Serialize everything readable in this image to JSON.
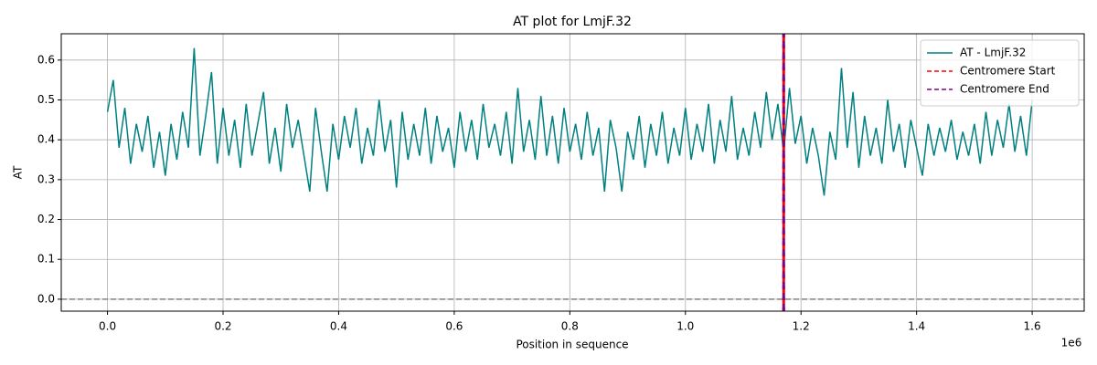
{
  "chart_data": {
    "type": "line",
    "title": "AT plot for LmjF.32",
    "x_label": "Position in sequence",
    "y_label": "AT",
    "x_offset_label": "1e6",
    "xlim": [
      -80000,
      1690000
    ],
    "ylim": [
      -0.03,
      0.666
    ],
    "xticks": [
      {
        "value": 0,
        "label": "0.0"
      },
      {
        "value": 200000,
        "label": "0.2"
      },
      {
        "value": 400000,
        "label": "0.4"
      },
      {
        "value": 600000,
        "label": "0.6"
      },
      {
        "value": 800000,
        "label": "0.8"
      },
      {
        "value": 1000000,
        "label": "1.0"
      },
      {
        "value": 1200000,
        "label": "1.2"
      },
      {
        "value": 1400000,
        "label": "1.4"
      },
      {
        "value": 1600000,
        "label": "1.6"
      }
    ],
    "yticks": [
      {
        "value": 0,
        "label": "0.0"
      },
      0.1,
      0.2,
      0.3,
      0.4,
      0.5,
      0.6
    ],
    "grid": true,
    "legend": "upper right",
    "x": [
      0,
      10000,
      20000,
      30000,
      40000,
      50000,
      60000,
      70000,
      80000,
      90000,
      100000,
      110000,
      120000,
      130000,
      140000,
      150000,
      160000,
      170000,
      180000,
      190000,
      200000,
      210000,
      220000,
      230000,
      240000,
      250000,
      260000,
      270000,
      280000,
      290000,
      300000,
      310000,
      320000,
      330000,
      340000,
      350000,
      360000,
      370000,
      380000,
      390000,
      400000,
      410000,
      420000,
      430000,
      440000,
      450000,
      460000,
      470000,
      480000,
      490000,
      500000,
      510000,
      520000,
      530000,
      540000,
      550000,
      560000,
      570000,
      580000,
      590000,
      600000,
      610000,
      620000,
      630000,
      640000,
      650000,
      660000,
      670000,
      680000,
      690000,
      700000,
      710000,
      720000,
      730000,
      740000,
      750000,
      760000,
      770000,
      780000,
      790000,
      800000,
      810000,
      820000,
      830000,
      840000,
      850000,
      860000,
      870000,
      880000,
      890000,
      900000,
      910000,
      920000,
      930000,
      940000,
      950000,
      960000,
      970000,
      980000,
      990000,
      1000000,
      1010000,
      1020000,
      1030000,
      1040000,
      1050000,
      1060000,
      1070000,
      1080000,
      1090000,
      1100000,
      1110000,
      1120000,
      1130000,
      1140000,
      1150000,
      1160000,
      1170000,
      1180000,
      1190000,
      1200000,
      1210000,
      1220000,
      1230000,
      1240000,
      1250000,
      1260000,
      1270000,
      1280000,
      1290000,
      1300000,
      1310000,
      1320000,
      1330000,
      1340000,
      1350000,
      1360000,
      1370000,
      1380000,
      1390000,
      1400000,
      1410000,
      1420000,
      1430000,
      1440000,
      1450000,
      1460000,
      1470000,
      1480000,
      1490000,
      1500000,
      1510000,
      1520000,
      1530000,
      1540000,
      1550000,
      1560000,
      1570000,
      1580000,
      1590000,
      1600000
    ],
    "series": [
      {
        "name": "AT - LmjF.32",
        "color": "#008080",
        "values": [
          0.47,
          0.55,
          0.38,
          0.48,
          0.34,
          0.44,
          0.37,
          0.46,
          0.33,
          0.42,
          0.31,
          0.44,
          0.35,
          0.47,
          0.38,
          0.63,
          0.36,
          0.46,
          0.57,
          0.34,
          0.48,
          0.36,
          0.45,
          0.33,
          0.49,
          0.36,
          0.44,
          0.52,
          0.34,
          0.43,
          0.32,
          0.49,
          0.38,
          0.45,
          0.36,
          0.27,
          0.48,
          0.37,
          0.27,
          0.44,
          0.35,
          0.46,
          0.38,
          0.48,
          0.34,
          0.43,
          0.36,
          0.5,
          0.37,
          0.45,
          0.28,
          0.47,
          0.35,
          0.44,
          0.36,
          0.48,
          0.34,
          0.46,
          0.37,
          0.43,
          0.33,
          0.47,
          0.37,
          0.45,
          0.35,
          0.49,
          0.38,
          0.44,
          0.36,
          0.47,
          0.34,
          0.53,
          0.37,
          0.45,
          0.35,
          0.51,
          0.36,
          0.46,
          0.34,
          0.48,
          0.37,
          0.44,
          0.35,
          0.47,
          0.36,
          0.43,
          0.27,
          0.45,
          0.38,
          0.27,
          0.42,
          0.35,
          0.46,
          0.33,
          0.44,
          0.36,
          0.47,
          0.34,
          0.43,
          0.36,
          0.48,
          0.35,
          0.44,
          0.37,
          0.49,
          0.34,
          0.45,
          0.37,
          0.51,
          0.35,
          0.43,
          0.36,
          0.47,
          0.38,
          0.52,
          0.4,
          0.49,
          0.37,
          0.53,
          0.39,
          0.46,
          0.34,
          0.43,
          0.36,
          0.26,
          0.42,
          0.35,
          0.58,
          0.38,
          0.52,
          0.33,
          0.46,
          0.36,
          0.43,
          0.34,
          0.5,
          0.37,
          0.44,
          0.33,
          0.45,
          0.38,
          0.31,
          0.44,
          0.36,
          0.43,
          0.37,
          0.45,
          0.35,
          0.42,
          0.36,
          0.44,
          0.34,
          0.47,
          0.36,
          0.45,
          0.38,
          0.49,
          0.37,
          0.46,
          0.36,
          0.5
        ]
      }
    ],
    "vlines": [
      {
        "name": "Centromere Start",
        "x": 1170000,
        "color": "#ff0000"
      },
      {
        "name": "Centromere End",
        "x": 1170000,
        "color": "#800080"
      }
    ],
    "hline": {
      "y": 0,
      "color": "#808080"
    }
  }
}
